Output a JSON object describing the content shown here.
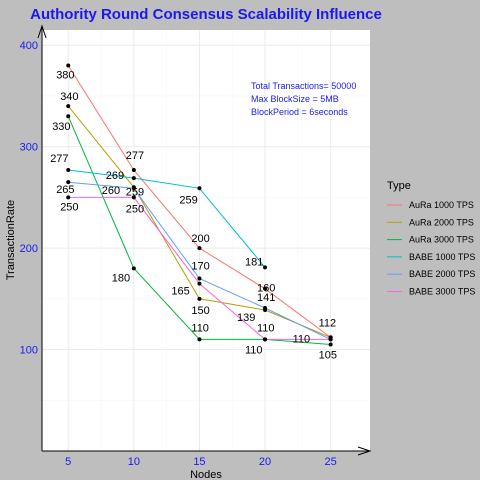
{
  "chart_data": {
    "type": "line",
    "title": "Authority Round Consensus Scalability Influence",
    "xlabel": "Nodes",
    "ylabel": "TransactionRate",
    "x": [
      5,
      10,
      15,
      20,
      25
    ],
    "x_ticks": [
      "5",
      "10",
      "15",
      "20",
      "25"
    ],
    "y_ticks": [
      "100",
      "200",
      "300",
      "400"
    ],
    "xlim": [
      3,
      28
    ],
    "ylim": [
      0,
      415
    ],
    "grid": true,
    "legend": {
      "title": "Type",
      "position": "right"
    },
    "annotations": [
      "Total Transactions= 50000",
      "Max BlockSize = 5MB",
      "BlockPeriod = 6seconds"
    ],
    "series": [
      {
        "name": "AuRa 1000 TPS",
        "color": "#f8766d",
        "values": [
          380,
          277,
          200,
          160,
          112
        ]
      },
      {
        "name": "AuRa 2000 TPS",
        "color": "#b79f00",
        "values": [
          340,
          260,
          150,
          139,
          112
        ]
      },
      {
        "name": "AuRa 3000 TPS",
        "color": "#00ba38",
        "values": [
          330,
          180,
          110,
          110,
          105
        ]
      },
      {
        "name": "BABE 1000 TPS",
        "color": "#00bfc4",
        "values": [
          277,
          269,
          259,
          181,
          null
        ]
      },
      {
        "name": "BABE 2000 TPS",
        "color": "#619cff",
        "values": [
          265,
          259,
          170,
          141,
          110
        ]
      },
      {
        "name": "BABE 3000 TPS",
        "color": "#f564e3",
        "values": [
          250,
          250,
          165,
          110,
          110
        ]
      }
    ],
    "data_labels": [
      {
        "x": 5,
        "y": 380,
        "text": "380"
      },
      {
        "x": 5,
        "y": 340,
        "text": "340"
      },
      {
        "x": 5,
        "y": 330,
        "text": "330"
      },
      {
        "x": 5,
        "y": 277,
        "text": "277"
      },
      {
        "x": 5,
        "y": 265,
        "text": "265"
      },
      {
        "x": 5,
        "y": 250,
        "text": "250"
      },
      {
        "x": 10,
        "y": 277,
        "text": "277"
      },
      {
        "x": 10,
        "y": 269,
        "text": "269"
      },
      {
        "x": 10,
        "y": 260,
        "text": "260"
      },
      {
        "x": 10,
        "y": 259,
        "text": "259"
      },
      {
        "x": 10,
        "y": 250,
        "text": "250"
      },
      {
        "x": 10,
        "y": 180,
        "text": "180"
      },
      {
        "x": 15,
        "y": 259,
        "text": "259"
      },
      {
        "x": 15,
        "y": 200,
        "text": "200"
      },
      {
        "x": 15,
        "y": 170,
        "text": "170"
      },
      {
        "x": 15,
        "y": 165,
        "text": "165"
      },
      {
        "x": 15,
        "y": 150,
        "text": "150"
      },
      {
        "x": 15,
        "y": 110,
        "text": "110"
      },
      {
        "x": 20,
        "y": 181,
        "text": "181"
      },
      {
        "x": 20,
        "y": 160,
        "text": "160"
      },
      {
        "x": 20,
        "y": 141,
        "text": "141"
      },
      {
        "x": 20,
        "y": 139,
        "text": "139"
      },
      {
        "x": 20,
        "y": 110,
        "text": "110"
      },
      {
        "x": 20,
        "y": 110,
        "text": "110"
      },
      {
        "x": 25,
        "y": 112,
        "text": "112"
      },
      {
        "x": 25,
        "y": 110,
        "text": "110"
      },
      {
        "x": 25,
        "y": 105,
        "text": "105"
      }
    ]
  }
}
